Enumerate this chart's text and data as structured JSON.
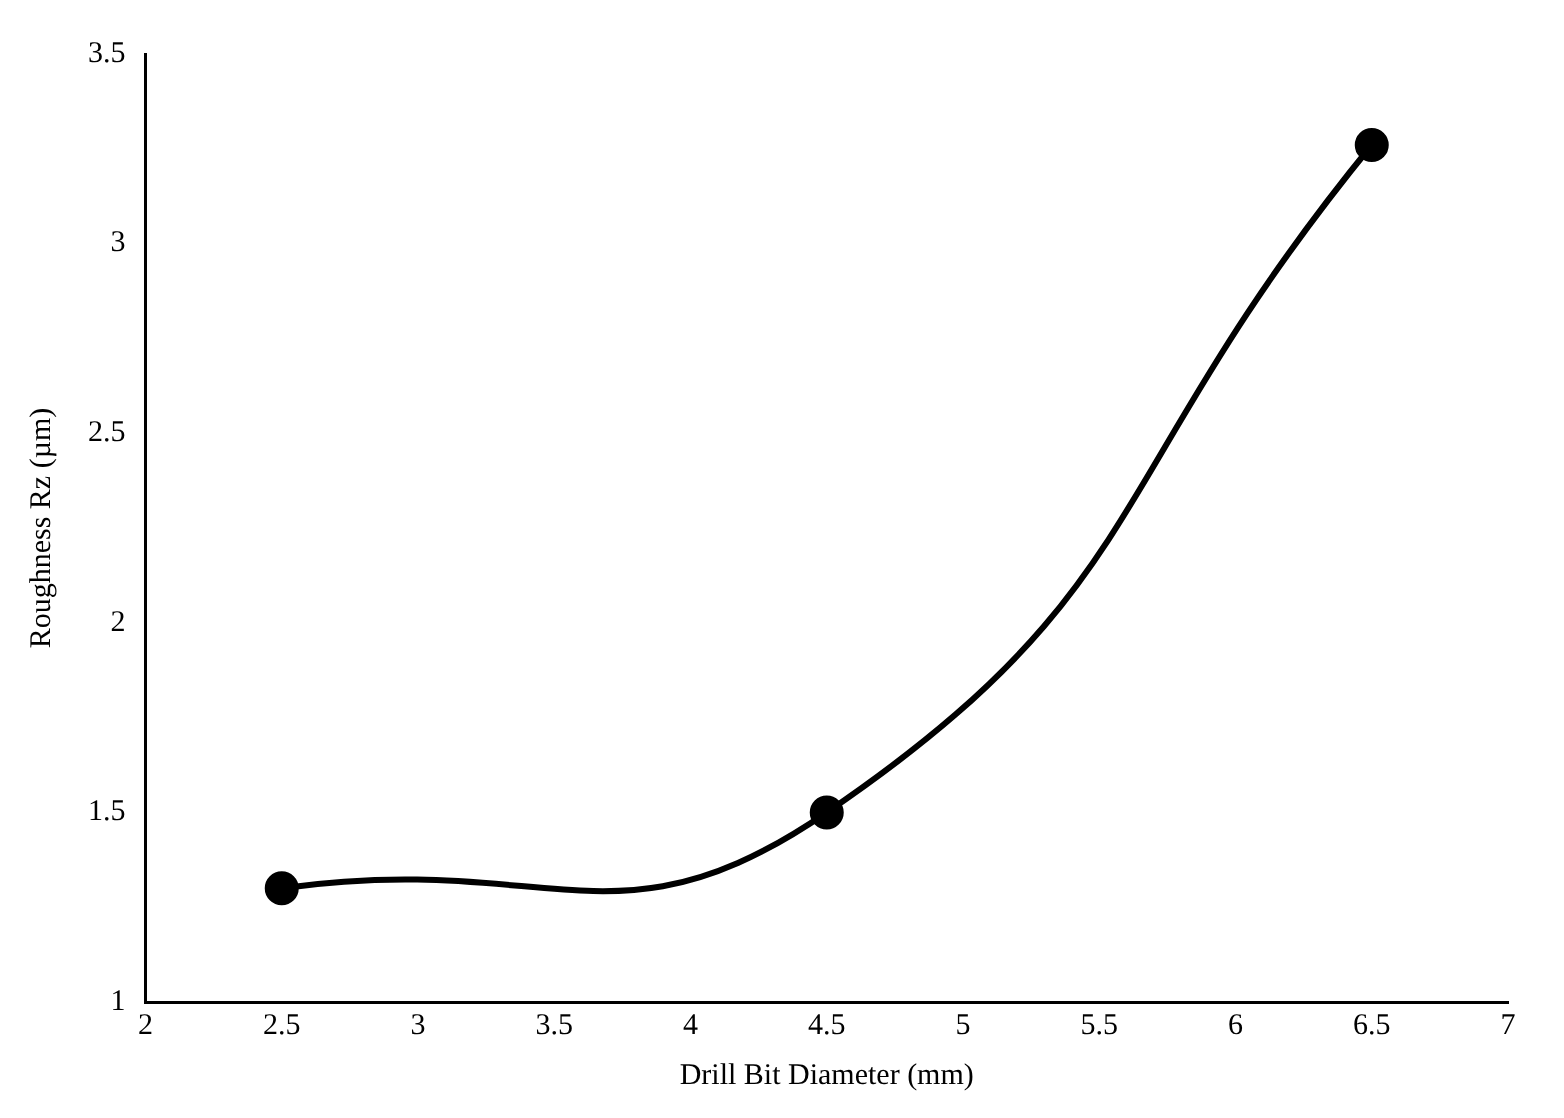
{
  "chart_data": {
    "type": "line",
    "xlabel": "Drill Bit Diameter (mm)",
    "ylabel": "Roughness Rz (µm)",
    "x": [
      2.5,
      4.5,
      6.5
    ],
    "series": [
      {
        "color": "#000000",
        "values": [
          1.3,
          1.5,
          3.26
        ]
      }
    ],
    "xlim": [
      2,
      7
    ],
    "xticks": [
      2,
      2.5,
      3,
      3.5,
      4,
      4.5,
      5,
      5.5,
      6,
      6.5,
      7
    ],
    "ylim": [
      1,
      3.5
    ],
    "yticks": [
      1,
      1.5,
      2,
      2.5,
      3,
      3.5
    ],
    "grid": false,
    "legend": false,
    "marker": "circle",
    "line_style": "solid"
  }
}
